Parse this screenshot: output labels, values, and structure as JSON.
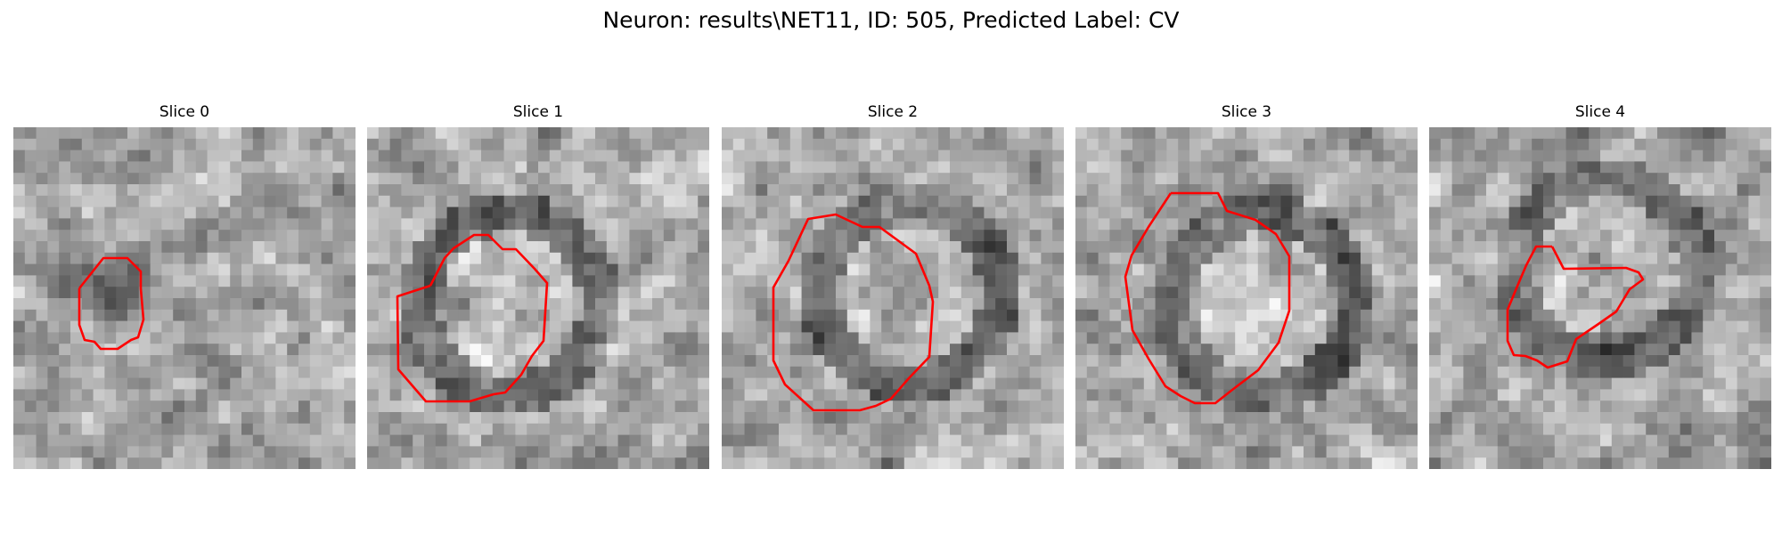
{
  "figure": {
    "title": "Neuron: results\\NET11, ID: 505, Predicted Label: CV"
  },
  "slices": [
    {
      "title": "Slice 0"
    },
    {
      "title": "Slice 1"
    },
    {
      "title": "Slice 2"
    },
    {
      "title": "Slice 3"
    },
    {
      "title": "Slice 4"
    }
  ],
  "colors": {
    "contour": "#ff0000",
    "background": "#ffffff"
  },
  "image": {
    "colormap": "gray",
    "grid": "30x30"
  }
}
